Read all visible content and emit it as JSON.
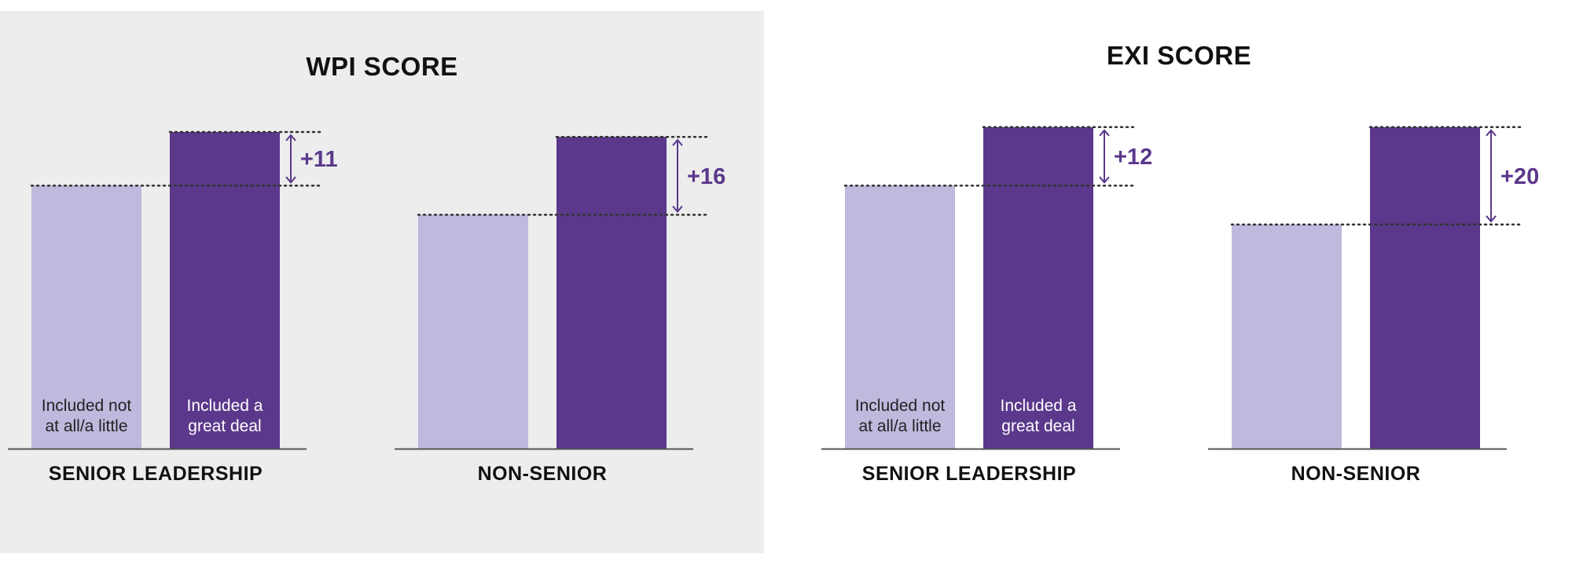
{
  "colors": {
    "light_bar": "#bfb9de",
    "dark_bar": "#5b388b",
    "accent": "#5b388b",
    "axis": "#555555",
    "light_text": "#222222",
    "dark_text": "#ffffff"
  },
  "chart_data": [
    {
      "type": "bar",
      "title": "WPI SCORE",
      "categories": [
        "SENIOR LEADERSHIP",
        "NON-SENIOR"
      ],
      "bar_labels": [
        "Included not at all/a little",
        "Included a great deal"
      ],
      "bar_label_lines": [
        [
          "Included not",
          "at all/a little"
        ],
        [
          "Included a",
          "great deal"
        ]
      ],
      "series": [
        {
          "name": "Included not at all/a little",
          "values": [
            54,
            48
          ]
        },
        {
          "name": "Included a great deal",
          "values": [
            65,
            64
          ]
        }
      ],
      "differences": [
        "+11",
        "+16"
      ],
      "ylim": [
        0,
        100
      ],
      "grid": false
    },
    {
      "type": "bar",
      "title": "EXI SCORE",
      "categories": [
        "SENIOR LEADERSHIP",
        "NON-SENIOR"
      ],
      "bar_labels": [
        "Included not at all/a little",
        "Included a great deal"
      ],
      "bar_label_lines": [
        [
          "Included not",
          "at all/a little"
        ],
        [
          "Included a",
          "great deal"
        ]
      ],
      "series": [
        {
          "name": "Included not at all/a little",
          "values": [
            54,
            46
          ]
        },
        {
          "name": "Included a great deal",
          "values": [
            66,
            66
          ]
        }
      ],
      "differences": [
        "+12",
        "+20"
      ],
      "ylim": [
        0,
        100
      ],
      "grid": false
    }
  ]
}
